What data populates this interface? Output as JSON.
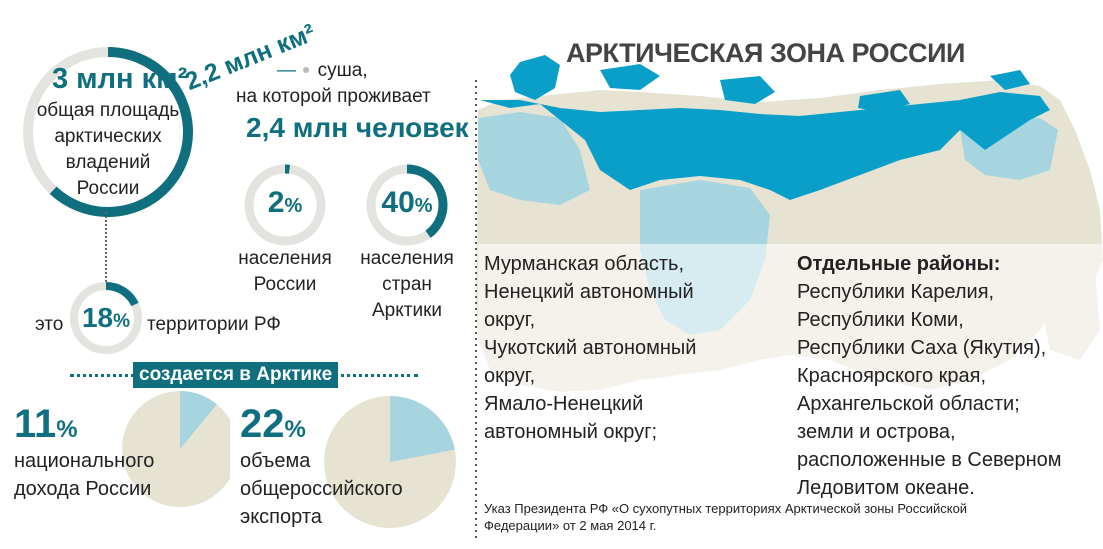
{
  "colors": {
    "teal_dark": "#0f6f7f",
    "teal_bright": "#0a9fc9",
    "light_blue": "#a7d5df",
    "land_beige": "#e7e3d3",
    "ring_grey": "#e3e3e0",
    "text": "#222222"
  },
  "title": "АРКТИЧЕСКАЯ ЗОНА РОССИИ",
  "area": {
    "value": "3 млн км²",
    "line1": "общая площадь",
    "line2": "арктических",
    "line3": "владений",
    "line4": "России"
  },
  "land": {
    "value": "2,2 млн км²",
    "dash": "—",
    "line1": "суша,",
    "line2": "на которой проживает",
    "population": "2,4 млн человек"
  },
  "share_russia": {
    "number": "2",
    "unit": "%",
    "fraction": 0.02,
    "line1": "населения",
    "line2": "России"
  },
  "share_arctic": {
    "number": "40",
    "unit": "%",
    "fraction": 0.4,
    "line1": "населения",
    "line2": "стран",
    "line3": "Арктики"
  },
  "territory": {
    "prefix": "это",
    "number": "18",
    "unit": "%",
    "fraction": 0.18,
    "suffix": "территории РФ"
  },
  "banner": "создается в Арктике",
  "income": {
    "number": "11",
    "unit": "%",
    "fraction": 0.11,
    "line1": "национального",
    "line2": "дохода России"
  },
  "export": {
    "number": "22",
    "unit": "%",
    "fraction": 0.22,
    "line1": "объема",
    "line2": "общероссийского",
    "line3": "экспорта"
  },
  "regions_full": [
    "Мурманская область,",
    "Ненецкий автономный",
    "округ,",
    "Чукотский автономный",
    "округ,",
    "Ямало-Ненецкий",
    "автономный округ;"
  ],
  "regions_partial": {
    "heading": "Отдельные районы:",
    "items": [
      "Республики Карелия,",
      "Республики Коми,",
      "Республики Саха (Якутия),",
      "Красноярского края,",
      "Архангельской области;",
      "земли и острова,",
      "расположенные в Северном",
      "Ледовитом океане."
    ]
  },
  "footnote": {
    "line1": "Указ Президента РФ «О сухопутных территориях Арктической зоны Российской",
    "line2": "Федерации» от 2 мая 2014 г."
  }
}
